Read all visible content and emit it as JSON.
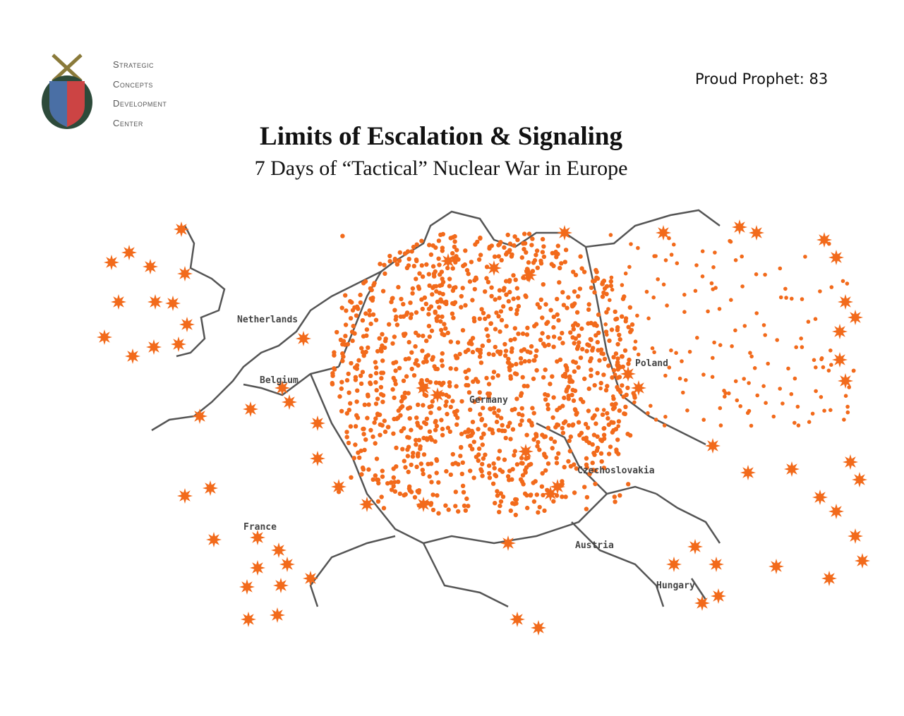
{
  "logo": {
    "lines": [
      "Strategic",
      "Concepts",
      "Development",
      "Center"
    ]
  },
  "header": {
    "label": "Proud Prophet: 83",
    "title": "Limits of Escalation & Signaling",
    "subtitle": "7 Days of “Tactical” Nuclear War in Europe"
  },
  "map": {
    "labels": [
      "Netherlands",
      "Belgium",
      "Poland",
      "Germany",
      "Czechoslovakia",
      "France",
      "Austria",
      "Hungary"
    ]
  }
}
